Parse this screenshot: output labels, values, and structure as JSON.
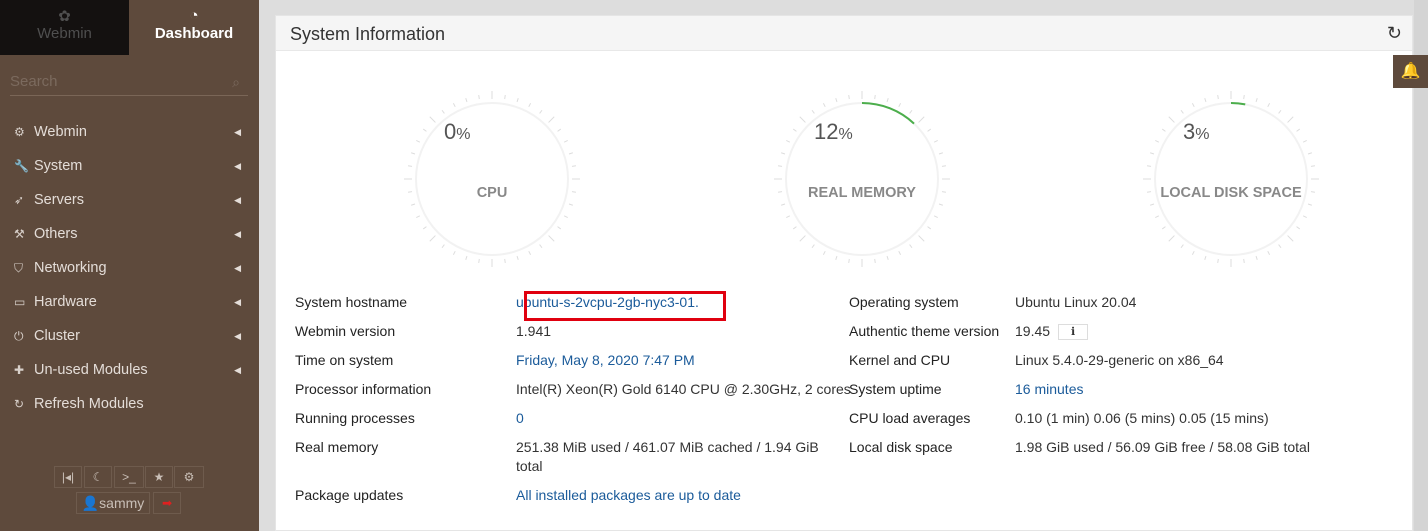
{
  "sidebar": {
    "tabs": [
      {
        "label": "Webmin",
        "icon": "webmin-logo-icon"
      },
      {
        "label": "Dashboard",
        "icon": "dashboard-gauge-icon"
      }
    ],
    "search_placeholder": "Search",
    "items": [
      {
        "label": "Webmin",
        "icon": "gear-icon"
      },
      {
        "label": "System",
        "icon": "wrench-icon"
      },
      {
        "label": "Servers",
        "icon": "rocket-icon"
      },
      {
        "label": "Others",
        "icon": "gavel-icon"
      },
      {
        "label": "Networking",
        "icon": "shield-icon"
      },
      {
        "label": "Hardware",
        "icon": "hdd-icon"
      },
      {
        "label": "Cluster",
        "icon": "power-icon"
      },
      {
        "label": "Un-used Modules",
        "icon": "puzzle-icon"
      },
      {
        "label": "Refresh Modules",
        "icon": "refresh-icon"
      }
    ],
    "user": "sammy"
  },
  "panel": {
    "title": "System Information"
  },
  "gauges": [
    {
      "value": "0",
      "unit": "%",
      "label": "CPU",
      "percent": 0
    },
    {
      "value": "12",
      "unit": "%",
      "label": "REAL MEMORY",
      "percent": 12
    },
    {
      "value": "3",
      "unit": "%",
      "label": "LOCAL DISK SPACE",
      "percent": 3
    }
  ],
  "info_left": [
    {
      "label": "System hostname",
      "value": "ubuntu-s-2vcpu-2gb-nyc3-01.",
      "link": true
    },
    {
      "label": "Webmin version",
      "value": "1.941",
      "link": false
    },
    {
      "label": "Time on system",
      "value": "Friday, May 8, 2020 7:47 PM",
      "link": true
    },
    {
      "label": "Processor information",
      "value": "Intel(R) Xeon(R) Gold 6140 CPU @ 2.30GHz, 2 cores",
      "link": false
    },
    {
      "label": "Running processes",
      "value": "0",
      "link": true
    },
    {
      "label": "Real memory",
      "value": "251.38 MiB used / 461.07 MiB cached / 1.94 GiB total",
      "link": false
    },
    {
      "label": "Package updates",
      "value": "All installed packages are up to date",
      "link": true
    }
  ],
  "info_right": [
    {
      "label": "Operating system",
      "value": "Ubuntu Linux 20.04",
      "link": false
    },
    {
      "label": "Authentic theme version",
      "value": "19.45",
      "link": false
    },
    {
      "label": "Kernel and CPU",
      "value": "Linux 5.4.0-29-generic on x86_64",
      "link": false
    },
    {
      "label": "System uptime",
      "value": "16 minutes",
      "link": true
    },
    {
      "label": "CPU load averages",
      "value": "0.10 (1 min) 0.06 (5 mins) 0.05 (15 mins)",
      "link": false
    },
    {
      "label": "Local disk space",
      "value": "1.98 GiB used / 56.09 GiB free / 58.08 GiB total",
      "link": false
    }
  ],
  "colors": {
    "sidebar": "#5e4a3c",
    "gauge_arc": "#4cae4c",
    "link": "#1b5b9a",
    "highlight": "#e0000f"
  }
}
